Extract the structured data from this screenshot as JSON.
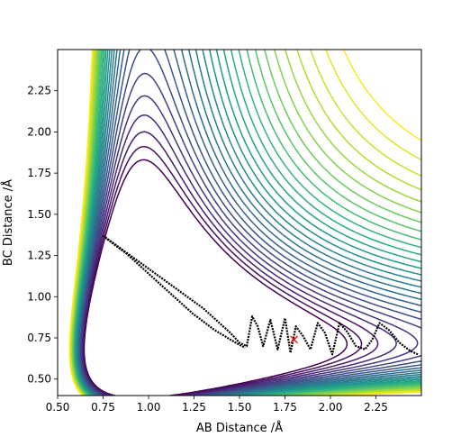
{
  "chart_data": {
    "type": "contour",
    "title": "",
    "xlabel": "AB Distance /Å",
    "ylabel": "BC Distance /Å",
    "xlim": [
      0.5,
      2.5
    ],
    "ylim": [
      0.4,
      2.5
    ],
    "x_ticks": [
      0.5,
      0.75,
      1.0,
      1.25,
      1.5,
      1.75,
      2.0,
      2.25
    ],
    "x_tick_labels": [
      "0.50",
      "0.75",
      "1.00",
      "1.25",
      "1.50",
      "1.75",
      "2.00",
      "2.25"
    ],
    "y_ticks": [
      0.5,
      0.75,
      1.0,
      1.25,
      1.5,
      1.75,
      2.0,
      2.25
    ],
    "y_tick_labels": [
      "0.50",
      "0.75",
      "1.00",
      "1.25",
      "1.50",
      "1.75",
      "2.00",
      "2.25"
    ],
    "colormap": "viridis",
    "grid": false,
    "contour_levels": [
      0.48,
      0.555,
      0.63,
      0.705,
      0.78,
      0.855,
      0.93,
      1.005,
      1.08,
      1.155,
      1.23,
      1.305,
      1.38,
      1.455,
      1.53,
      1.605,
      1.68,
      1.755,
      1.83,
      1.905,
      1.98,
      2.055,
      2.13,
      2.205,
      2.28,
      2.355,
      2.43
    ],
    "trajectory": [
      [
        0.75,
        1.37
      ],
      [
        0.8,
        1.33
      ],
      [
        0.85,
        1.29
      ],
      [
        0.9,
        1.25
      ],
      [
        0.95,
        1.21
      ],
      [
        1.0,
        1.17
      ],
      [
        1.05,
        1.13
      ],
      [
        1.1,
        1.09
      ],
      [
        1.15,
        1.05
      ],
      [
        1.2,
        1.01
      ],
      [
        1.25,
        0.97
      ],
      [
        1.3,
        0.93
      ],
      [
        1.35,
        0.88
      ],
      [
        1.4,
        0.83
      ],
      [
        1.45,
        0.78
      ],
      [
        1.5,
        0.72
      ],
      [
        1.54,
        0.7
      ],
      [
        1.57,
        0.88
      ],
      [
        1.6,
        0.82
      ],
      [
        1.63,
        0.7
      ],
      [
        1.67,
        0.86
      ],
      [
        1.71,
        0.68
      ],
      [
        1.75,
        0.87
      ],
      [
        1.78,
        0.66
      ],
      [
        1.81,
        0.82
      ],
      [
        1.85,
        0.76
      ],
      [
        1.89,
        0.68
      ],
      [
        1.93,
        0.84
      ],
      [
        1.97,
        0.78
      ],
      [
        2.01,
        0.65
      ],
      [
        2.05,
        0.84
      ],
      [
        2.09,
        0.79
      ],
      [
        2.14,
        0.7
      ],
      [
        2.19,
        0.68
      ],
      [
        2.23,
        0.74
      ],
      [
        2.27,
        0.84
      ],
      [
        2.32,
        0.8
      ],
      [
        2.38,
        0.72
      ],
      [
        2.44,
        0.67
      ],
      [
        2.48,
        0.65
      ]
    ],
    "trajectory_return": [
      [
        0.76,
        1.36
      ],
      [
        0.82,
        1.31
      ],
      [
        0.88,
        1.26
      ],
      [
        0.94,
        1.2
      ],
      [
        1.0,
        1.14
      ],
      [
        1.06,
        1.08
      ],
      [
        1.12,
        1.02
      ],
      [
        1.18,
        0.96
      ],
      [
        1.24,
        0.9
      ],
      [
        1.3,
        0.85
      ],
      [
        1.36,
        0.8
      ],
      [
        1.42,
        0.76
      ],
      [
        1.48,
        0.72
      ],
      [
        1.53,
        0.69
      ]
    ],
    "marker": {
      "x": 1.8,
      "y": 0.74,
      "symbol": "x",
      "color": "#ff0000"
    },
    "line_color": "#000000"
  }
}
